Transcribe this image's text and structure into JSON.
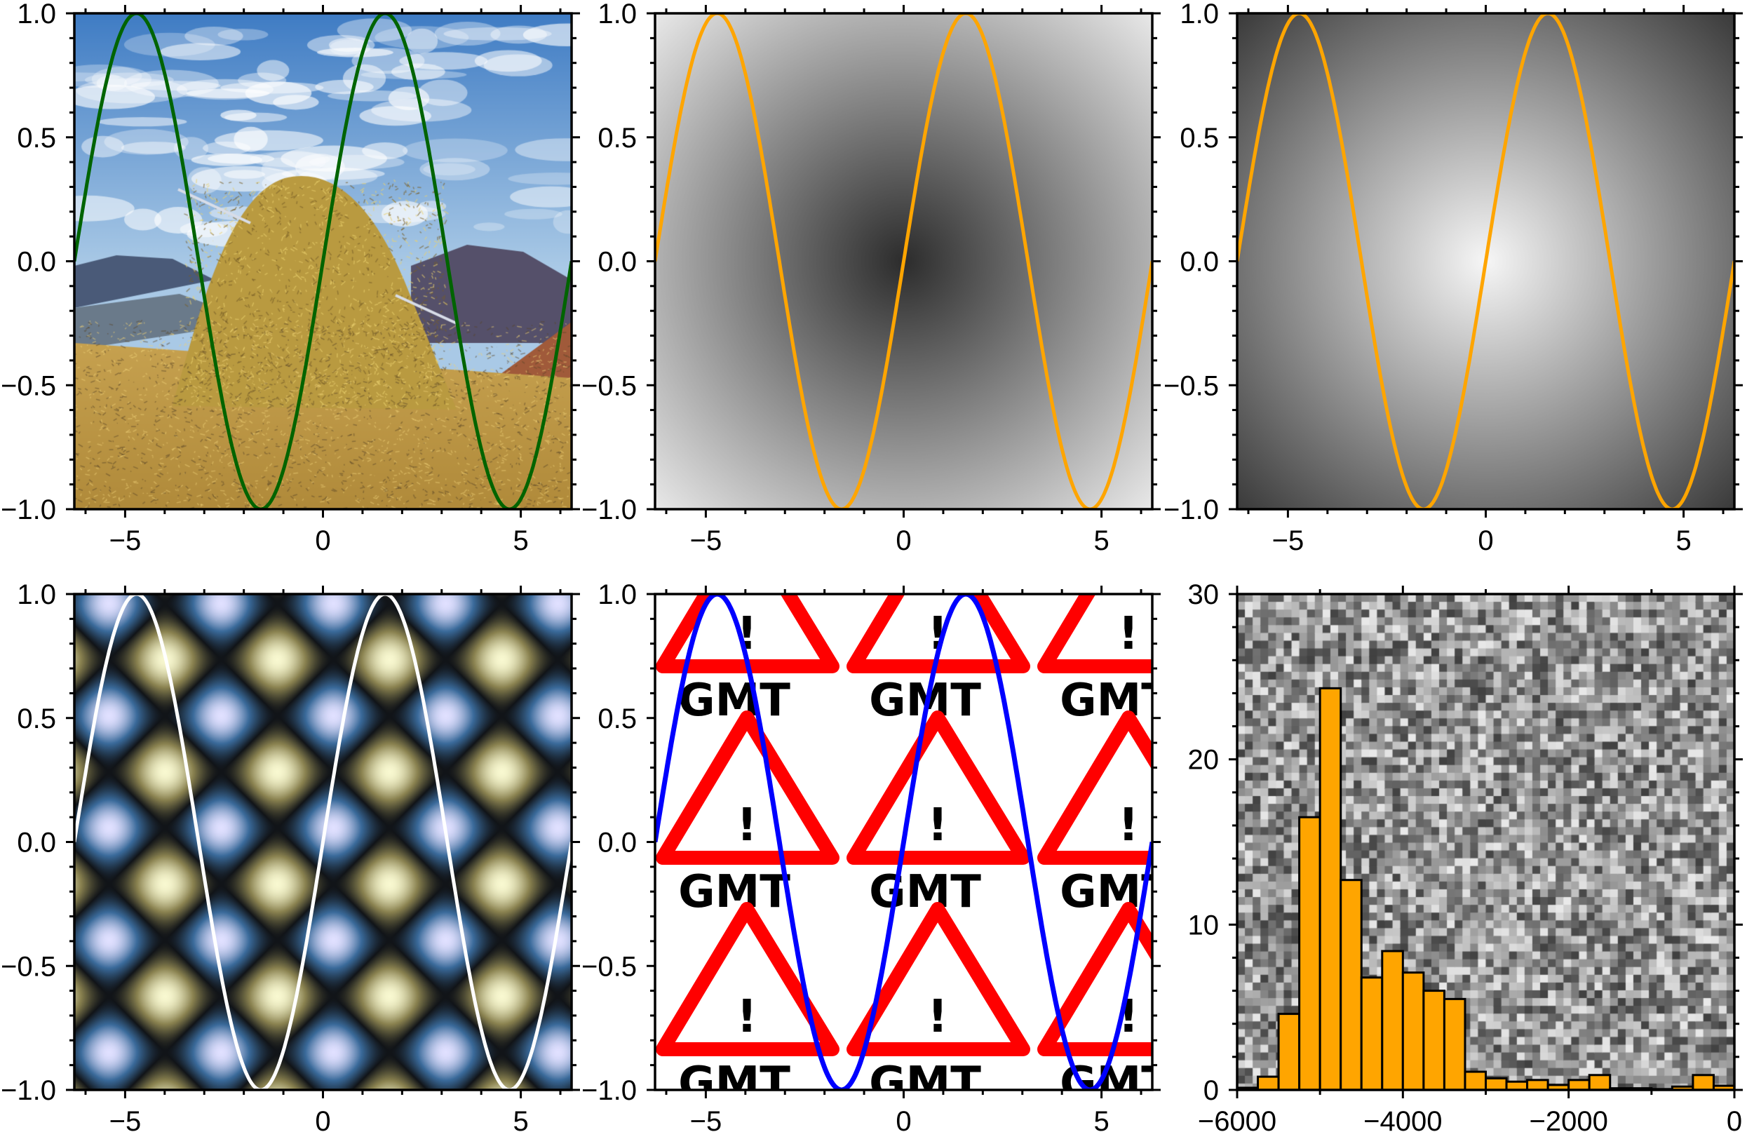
{
  "chart_data": [
    {
      "id": "haystack-sine",
      "type": "line",
      "background": "haystack-image",
      "series": [
        {
          "name": "sin(x)",
          "function": "sin",
          "color": "#006400"
        }
      ],
      "xlim": [
        -6.2832,
        6.2832
      ],
      "ylim": [
        -1,
        1
      ],
      "xticks": {
        "values": [
          -5,
          0,
          5
        ],
        "labels": [
          "−5",
          "0",
          "5"
        ],
        "minor_step": 1
      },
      "yticks": {
        "values": [
          -1,
          -0.5,
          0,
          0.5,
          1
        ],
        "labels": [
          "−1.0",
          "−0.5",
          "0.0",
          "0.5",
          "1.0"
        ],
        "minor_step": 0.1
      }
    },
    {
      "id": "dark-center-gradient-sine",
      "type": "line",
      "background": "gradient-dark-center",
      "series": [
        {
          "name": "sin(x)",
          "function": "sin",
          "color": "#FFA500"
        }
      ],
      "xlim": [
        -6.2832,
        6.2832
      ],
      "ylim": [
        -1,
        1
      ],
      "xticks": {
        "values": [
          -5,
          0,
          5
        ],
        "labels": [
          "−5",
          "0",
          "5"
        ],
        "minor_step": 1
      },
      "yticks": {
        "values": [
          -1,
          -0.5,
          0,
          0.5,
          1
        ],
        "labels": [
          "−1.0",
          "−0.5",
          "0.0",
          "0.5",
          "1.0"
        ],
        "minor_step": 0.1
      }
    },
    {
      "id": "light-center-gradient-sine",
      "type": "line",
      "background": "gradient-light-center",
      "series": [
        {
          "name": "sin(x)",
          "function": "sin",
          "color": "#FFA500"
        }
      ],
      "xlim": [
        -6.2832,
        6.2832
      ],
      "ylim": [
        -1,
        1
      ],
      "xticks": {
        "values": [
          -5,
          0,
          5
        ],
        "labels": [
          "−5",
          "0",
          "5"
        ],
        "minor_step": 1
      },
      "yticks": {
        "values": [
          -1,
          -0.5,
          0,
          0.5,
          1
        ],
        "labels": [
          "−1.0",
          "−0.5",
          "0.0",
          "0.5",
          "1.0"
        ],
        "minor_step": 0.1
      }
    },
    {
      "id": "diamond-pattern-sine",
      "type": "line",
      "background": "diamond-pattern",
      "series": [
        {
          "name": "sin(x)",
          "function": "sin",
          "color": "#FFFFFF"
        }
      ],
      "xlim": [
        -6.2832,
        6.2832
      ],
      "ylim": [
        -1,
        1
      ],
      "xticks": {
        "values": [
          -5,
          0,
          5
        ],
        "labels": [
          "−5",
          "0",
          "5"
        ],
        "minor_step": 1
      },
      "yticks": {
        "values": [
          -1,
          -0.5,
          0,
          0.5,
          1
        ],
        "labels": [
          "−1.0",
          "−0.5",
          "0.0",
          "0.5",
          "1.0"
        ],
        "minor_step": 0.1
      }
    },
    {
      "id": "gmt-pattern-sine",
      "type": "line",
      "background": "gmt-pattern",
      "pattern_text": "GMT",
      "pattern_mark": "!",
      "pattern_color": "#FF0000",
      "series": [
        {
          "name": "sin(x)",
          "function": "sin",
          "color": "#0000FF"
        }
      ],
      "xlim": [
        -6.2832,
        6.2832
      ],
      "ylim": [
        -1,
        1
      ],
      "xticks": {
        "values": [
          -5,
          0,
          5
        ],
        "labels": [
          "−5",
          "0",
          "5"
        ],
        "minor_step": 1
      },
      "yticks": {
        "values": [
          -1,
          -0.5,
          0,
          0.5,
          1
        ],
        "labels": [
          "−1.0",
          "−0.5",
          "0.0",
          "0.5",
          "1.0"
        ],
        "minor_step": 0.1
      }
    },
    {
      "id": "histogram",
      "type": "bar",
      "background": "grey-noise",
      "bar_color": "#FFA500",
      "bin_start": -6000,
      "bin_width": 250,
      "counts": [
        0.13,
        0.8,
        4.6,
        16.5,
        24.3,
        12.7,
        6.8,
        8.4,
        7.1,
        6.0,
        5.5,
        1.1,
        0.7,
        0.5,
        0.6,
        0.3,
        0.6,
        0.9,
        0.1,
        0.1,
        0.05,
        0.2,
        0.9,
        0.25
      ],
      "xlim": [
        -6000,
        0
      ],
      "ylim": [
        0,
        30
      ],
      "xticks": {
        "values": [
          -6000,
          -4000,
          -2000,
          0
        ],
        "labels": [
          "−6000",
          "−4000",
          "−2000",
          "0"
        ],
        "minor_step": 1000
      },
      "yticks": {
        "values": [
          0,
          10,
          20,
          30
        ],
        "labels": [
          "0",
          "10",
          "20",
          "30"
        ],
        "minor_step": 2
      }
    }
  ]
}
